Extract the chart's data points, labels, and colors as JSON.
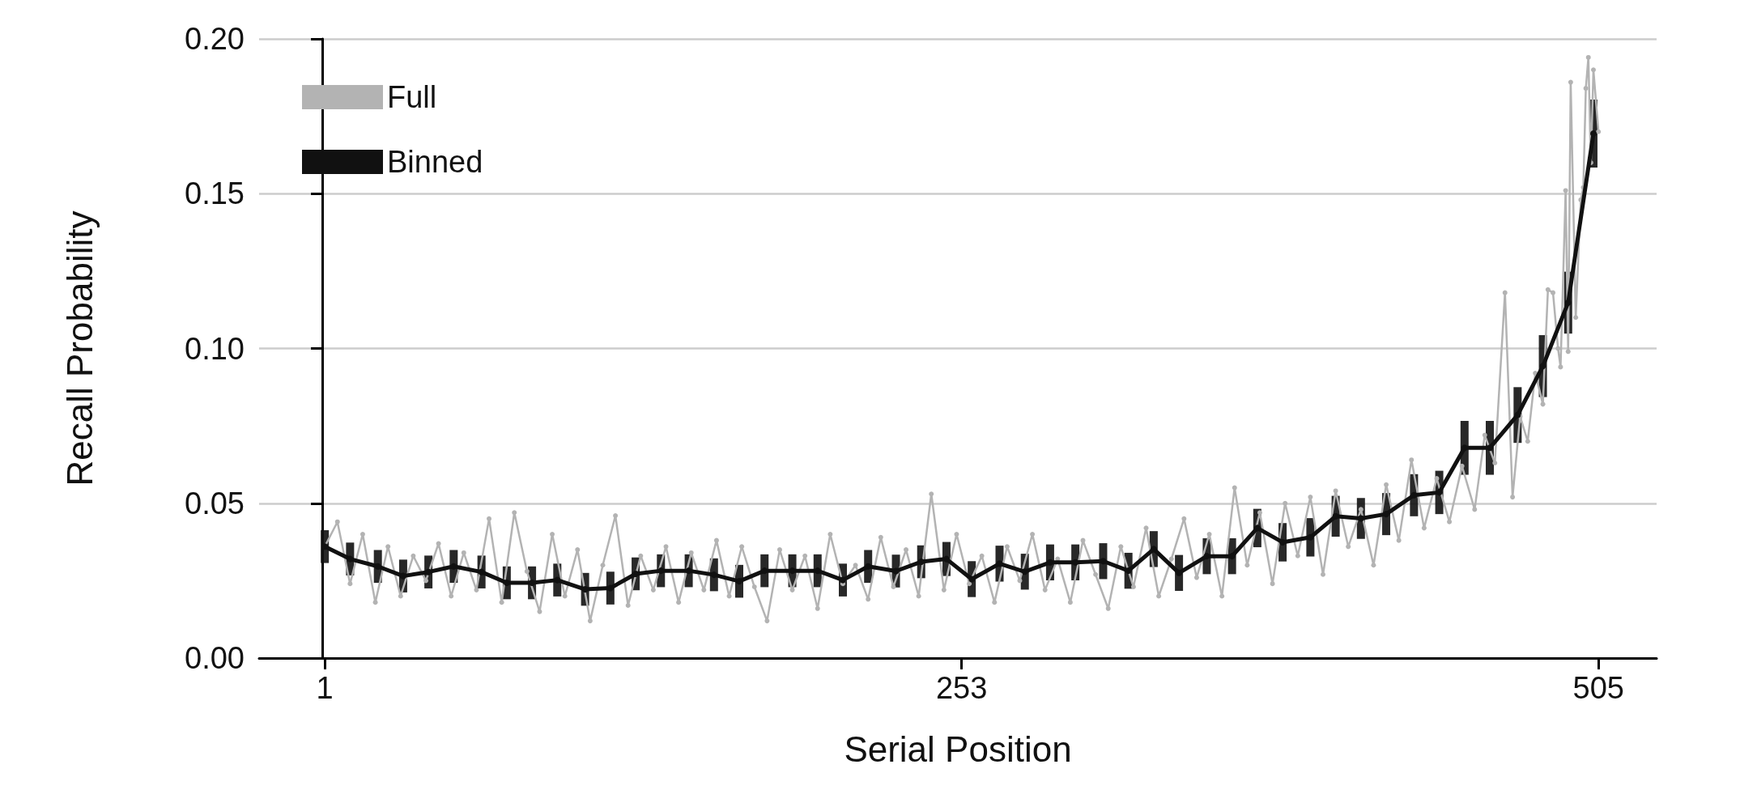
{
  "chart_data": {
    "type": "line",
    "xlabel": "Serial Position",
    "ylabel": "Recall Probability",
    "xlim": [
      -25,
      528
    ],
    "xticks": [
      1,
      253,
      505
    ],
    "ylim": [
      0,
      0.2
    ],
    "yticks": [
      {
        "value": 0,
        "label": "0.00"
      },
      {
        "value": 0.05,
        "label": "0.05"
      },
      {
        "value": 0.1,
        "label": "0.10"
      },
      {
        "value": 0.15,
        "label": "0.15"
      },
      {
        "value": 0.2,
        "label": "0.20"
      }
    ],
    "grid": "y",
    "legend": "top left",
    "marker": "circle",
    "line_style": "solid",
    "series": [
      {
        "name": "Full",
        "color": "#b3b3b3",
        "x": [
          1,
          6,
          11,
          16,
          21,
          26,
          31,
          36,
          41,
          46,
          51,
          56,
          61,
          66,
          71,
          76,
          81,
          86,
          91,
          96,
          101,
          106,
          111,
          116,
          121,
          126,
          131,
          136,
          141,
          146,
          151,
          156,
          161,
          166,
          171,
          176,
          181,
          186,
          191,
          196,
          201,
          206,
          211,
          216,
          221,
          226,
          231,
          236,
          241,
          246,
          251,
          256,
          261,
          266,
          271,
          276,
          281,
          286,
          291,
          296,
          301,
          306,
          311,
          316,
          321,
          326,
          331,
          336,
          341,
          346,
          351,
          356,
          361,
          366,
          371,
          376,
          381,
          386,
          391,
          396,
          401,
          406,
          411,
          416,
          421,
          426,
          431,
          436,
          441,
          446,
          451,
          456,
          460,
          464,
          468,
          471,
          474,
          477,
          480,
          483,
          485,
          487,
          489,
          490,
          492,
          493,
          494,
          496,
          498,
          499,
          500,
          501,
          502,
          503,
          505
        ],
        "values": [
          0.036,
          0.044,
          0.024,
          0.04,
          0.018,
          0.036,
          0.02,
          0.033,
          0.025,
          0.037,
          0.02,
          0.034,
          0.022,
          0.045,
          0.018,
          0.047,
          0.028,
          0.015,
          0.04,
          0.02,
          0.035,
          0.012,
          0.03,
          0.046,
          0.017,
          0.033,
          0.022,
          0.036,
          0.018,
          0.034,
          0.022,
          0.038,
          0.02,
          0.036,
          0.023,
          0.012,
          0.035,
          0.022,
          0.033,
          0.016,
          0.04,
          0.024,
          0.03,
          0.019,
          0.039,
          0.023,
          0.035,
          0.02,
          0.053,
          0.022,
          0.04,
          0.024,
          0.033,
          0.018,
          0.036,
          0.025,
          0.04,
          0.022,
          0.032,
          0.018,
          0.038,
          0.027,
          0.016,
          0.036,
          0.023,
          0.042,
          0.02,
          0.032,
          0.045,
          0.026,
          0.04,
          0.02,
          0.055,
          0.03,
          0.047,
          0.024,
          0.05,
          0.033,
          0.052,
          0.027,
          0.054,
          0.036,
          0.048,
          0.03,
          0.056,
          0.038,
          0.064,
          0.042,
          0.058,
          0.044,
          0.062,
          0.048,
          0.072,
          0.063,
          0.118,
          0.052,
          0.078,
          0.07,
          0.092,
          0.082,
          0.119,
          0.118,
          0.1,
          0.094,
          0.151,
          0.099,
          0.186,
          0.11,
          0.148,
          0.152,
          0.184,
          0.194,
          0.16,
          0.19,
          0.17
        ]
      },
      {
        "name": "Binned",
        "color": "#111111",
        "x": [
          1,
          11,
          22,
          32,
          42,
          52,
          63,
          73,
          83,
          93,
          104,
          114,
          124,
          134,
          145,
          155,
          165,
          175,
          186,
          196,
          206,
          216,
          227,
          237,
          247,
          257,
          268,
          278,
          288,
          298,
          309,
          319,
          329,
          339,
          350,
          360,
          370,
          380,
          391,
          401,
          411,
          421,
          432,
          442,
          452,
          462,
          473,
          483,
          493,
          503
        ],
        "values": [
          0.036,
          0.032,
          0.0296,
          0.0265,
          0.0278,
          0.0296,
          0.0278,
          0.0243,
          0.0243,
          0.0252,
          0.0222,
          0.0226,
          0.0272,
          0.0282,
          0.0282,
          0.0269,
          0.0248,
          0.0282,
          0.0282,
          0.0282,
          0.0252,
          0.0296,
          0.0281,
          0.0311,
          0.032,
          0.0255,
          0.0305,
          0.0279,
          0.0309,
          0.0309,
          0.0313,
          0.0282,
          0.0352,
          0.0275,
          0.0329,
          0.0329,
          0.042,
          0.0374,
          0.039,
          0.0458,
          0.0451,
          0.0465,
          0.0526,
          0.0535,
          0.0679,
          0.0679,
          0.0785,
          0.0943,
          0.1148,
          0.1694
        ],
        "errors": [
          0.0053,
          0.0053,
          0.0053,
          0.0053,
          0.0053,
          0.0053,
          0.0053,
          0.0053,
          0.0053,
          0.0053,
          0.0053,
          0.0053,
          0.0053,
          0.0053,
          0.0053,
          0.0053,
          0.0053,
          0.0053,
          0.0053,
          0.0053,
          0.0053,
          0.0053,
          0.0053,
          0.0053,
          0.0055,
          0.0058,
          0.0058,
          0.0058,
          0.0058,
          0.0058,
          0.0058,
          0.0058,
          0.0058,
          0.0058,
          0.0058,
          0.0058,
          0.0062,
          0.0062,
          0.0062,
          0.0066,
          0.0066,
          0.0068,
          0.0068,
          0.007,
          0.0087,
          0.0087,
          0.009,
          0.01,
          0.01,
          0.011
        ]
      }
    ]
  }
}
